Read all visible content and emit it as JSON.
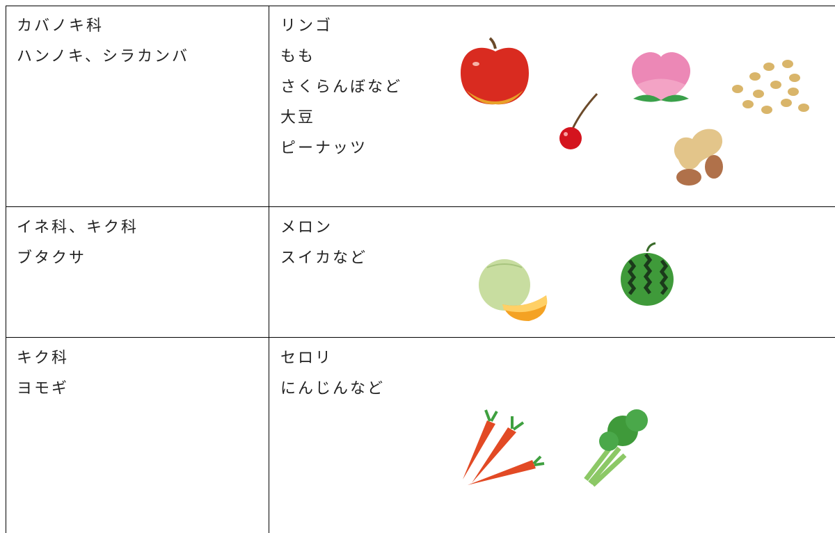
{
  "table": {
    "rows": [
      [
        [
          "カバノキ科",
          "ハンノキ、シラカンバ"
        ],
        [
          "リンゴ",
          "もも",
          "さくらんぼなど",
          "大豆",
          "ピーナッツ"
        ]
      ],
      [
        [
          "イネ科、キク科",
          "ブタクサ"
        ],
        [
          "メロン",
          "スイカなど"
        ]
      ],
      [
        [
          "キク科",
          "ヨモギ"
        ],
        [
          "セロリ",
          "にんじんなど"
        ]
      ]
    ]
  }
}
